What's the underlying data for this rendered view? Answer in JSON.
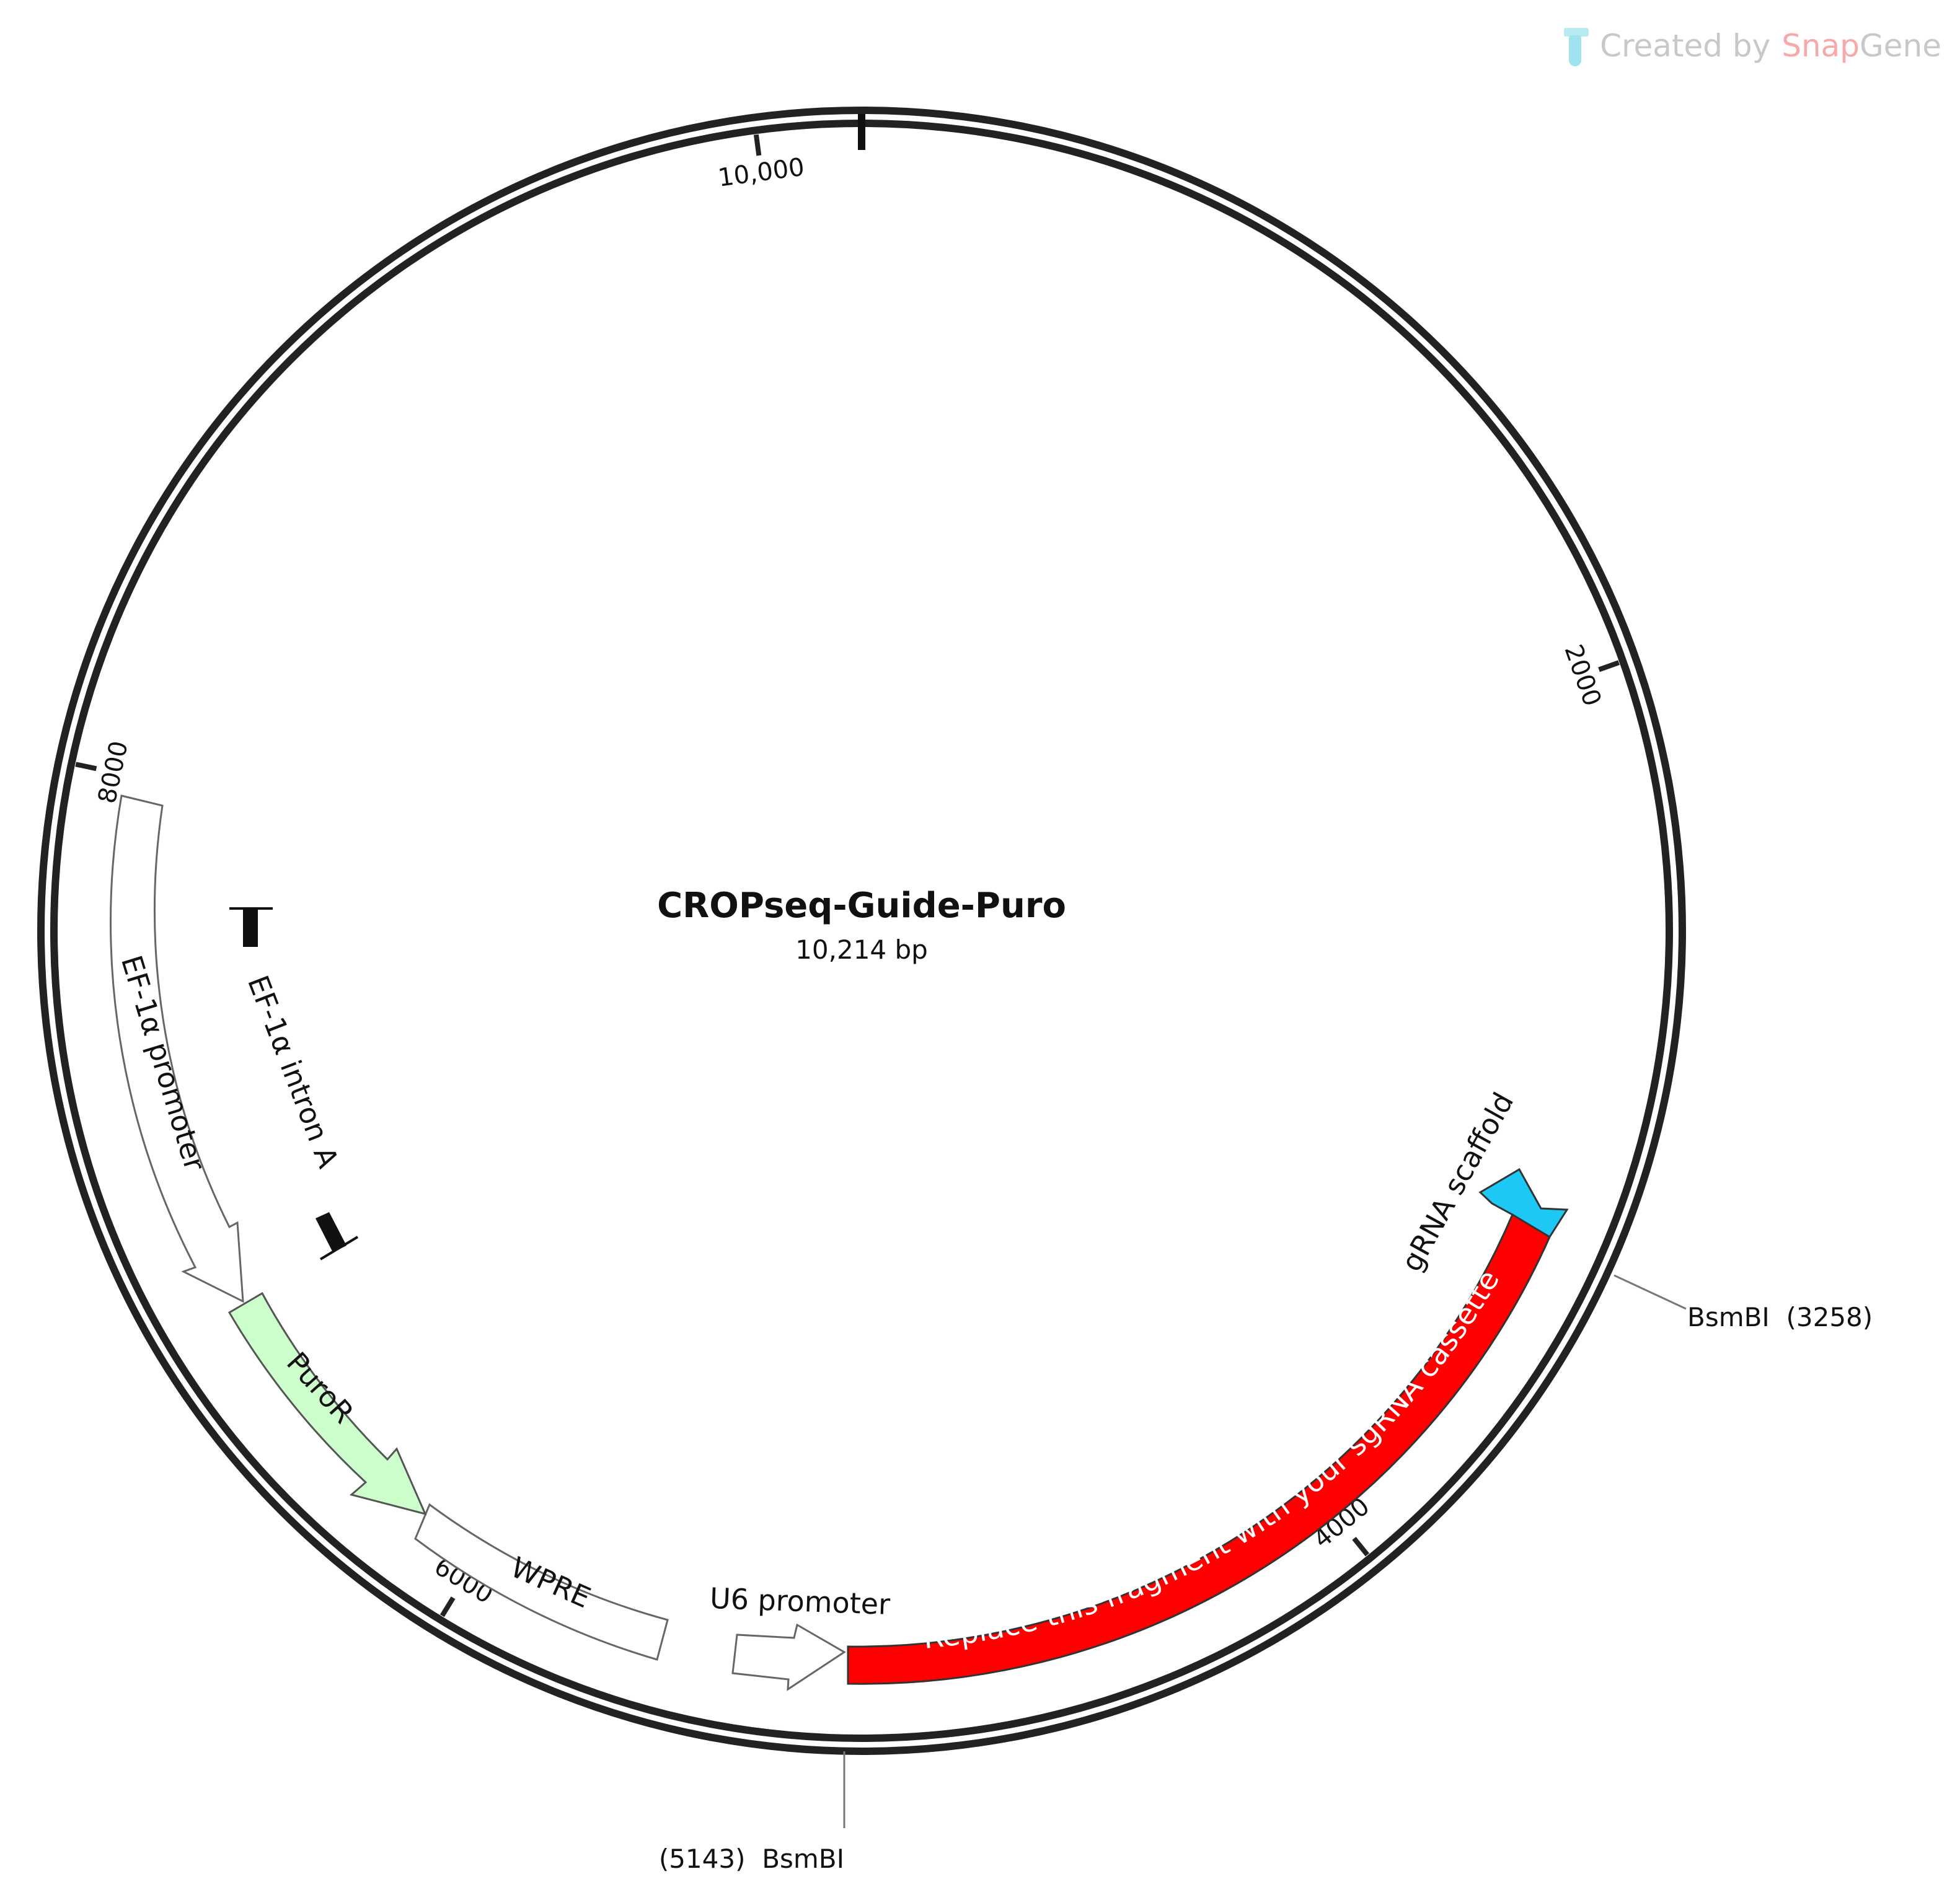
{
  "watermark": {
    "created_by": "Created by",
    "brand_snap": "Snap",
    "brand_gene": "Gene"
  },
  "plasmid": {
    "name": "CROPseq-Guide-Puro",
    "length_label": "10,214 bp",
    "length_bp": 10214
  },
  "ticks": [
    {
      "bp": 2000,
      "label": "2000"
    },
    {
      "bp": 4000,
      "label": "4000"
    },
    {
      "bp": 6000,
      "label": "6000"
    },
    {
      "bp": 8000,
      "label": "8000"
    },
    {
      "bp": 10000,
      "label": "10,000"
    }
  ],
  "sites": [
    {
      "name": "BsmBI",
      "position": 3258,
      "label": "BsmBI  (3258)"
    },
    {
      "name": "BsmBI",
      "position": 5143,
      "label": "(5143)  BsmBI"
    }
  ],
  "features": [
    {
      "name": "gRNA scaffold",
      "label": "gRNA scaffold",
      "color": "#00bfff"
    },
    {
      "name": "Replace this fragment with your sgRNA cassette",
      "label": "Replace this fragment with your sgRNA cassette",
      "color": "#ff0000"
    },
    {
      "name": "U6 promoter",
      "label": "U6 promoter",
      "color": "#ffffff"
    },
    {
      "name": "WPRE",
      "label": "WPRE",
      "color": "#ffffff"
    },
    {
      "name": "PuroR",
      "label": "PuroR",
      "color": "#ccffcc"
    },
    {
      "name": "EF-1α promoter",
      "label": "EF-1α promoter",
      "color": "#ffffff"
    },
    {
      "name": "EF-1α intron A",
      "label": "EF-1α intron A",
      "color": "#000000"
    }
  ]
}
